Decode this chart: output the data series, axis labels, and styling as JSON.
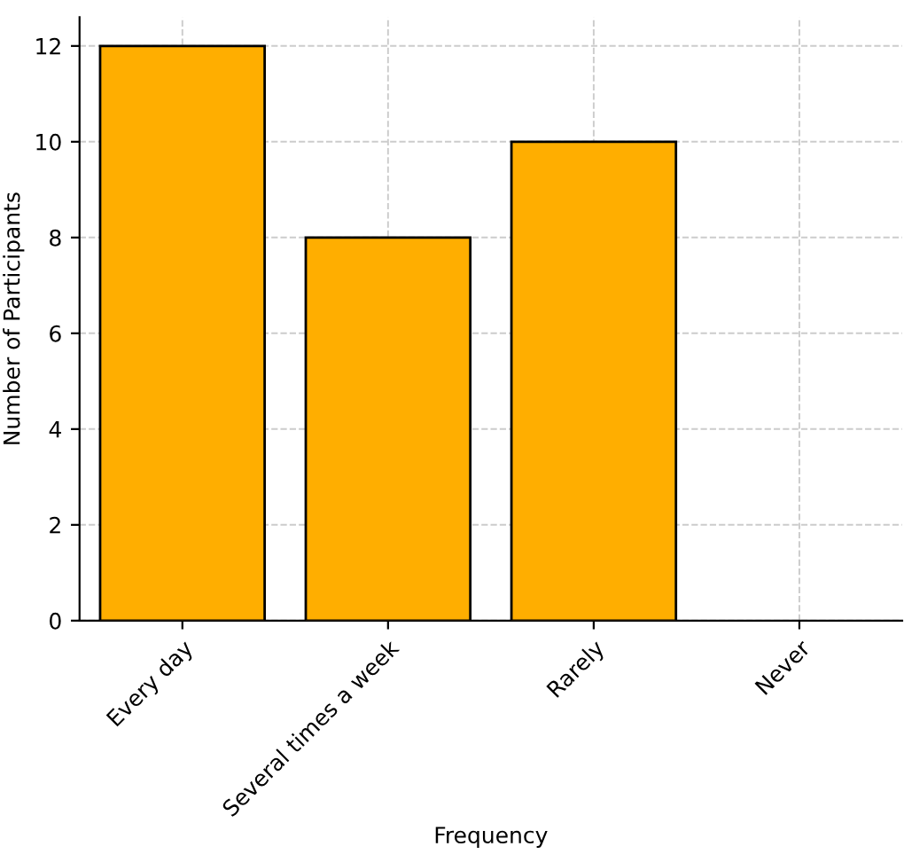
{
  "chart_data": {
    "type": "bar",
    "xlabel": "Frequency",
    "ylabel": "Number of Participants",
    "categories": [
      "Every day",
      "Several times a week",
      "Rarely",
      "Never"
    ],
    "values": [
      12,
      8,
      10,
      0
    ],
    "color": "#ffae00",
    "ylim": [
      0,
      12.6
    ],
    "yticks": [
      0,
      2,
      4,
      6,
      8,
      10,
      12
    ],
    "grid": true
  }
}
